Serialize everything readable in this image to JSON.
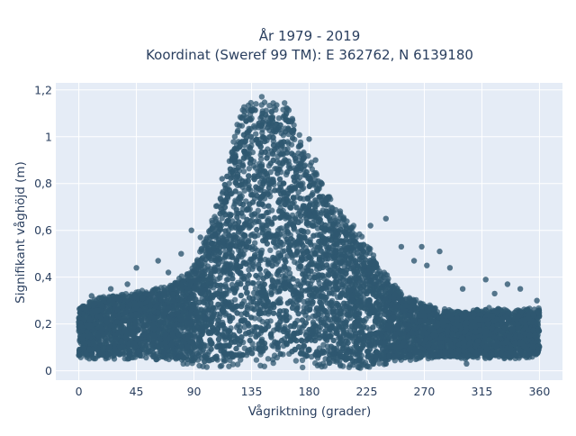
{
  "chart_data": {
    "type": "scatter",
    "title_line1": "År 1979 - 2019",
    "title_line2": "Koordinat (Sweref 99 TM): E 362762, N 6139180",
    "xlabel": "Vågriktning (grader)",
    "ylabel": "Signifikant våghöjd (m)",
    "xlim": [
      -18,
      378
    ],
    "ylim": [
      -0.04,
      1.23
    ],
    "x_ticks": [
      0,
      45,
      90,
      135,
      180,
      225,
      270,
      315,
      360
    ],
    "x_tick_labels": [
      "0",
      "45",
      "90",
      "135",
      "180",
      "225",
      "270",
      "315",
      "360"
    ],
    "y_ticks": [
      0,
      0.2,
      0.4,
      0.6,
      0.8,
      1.0,
      1.2
    ],
    "y_tick_labels": [
      "0",
      "0,2",
      "0,4",
      "0,6",
      "0,8",
      "1",
      "1,2"
    ],
    "grid": true,
    "marker_color": "#2f5870",
    "background_color": "#e5ecf6",
    "envelope": {
      "x": [
        0,
        20,
        45,
        70,
        90,
        100,
        110,
        118,
        125,
        130,
        135,
        145,
        160,
        168,
        175,
        185,
        195,
        205,
        215,
        225,
        235,
        245,
        255,
        265,
        280,
        300,
        320,
        340,
        360
      ],
      "y_max": [
        0.28,
        0.32,
        0.34,
        0.36,
        0.45,
        0.58,
        0.75,
        0.92,
        1.08,
        1.16,
        1.18,
        1.17,
        1.15,
        1.12,
        0.98,
        0.85,
        0.75,
        0.68,
        0.62,
        0.55,
        0.45,
        0.38,
        0.32,
        0.3,
        0.27,
        0.25,
        0.27,
        0.26,
        0.27
      ],
      "y_min": [
        0.05,
        0.05,
        0.05,
        0.04,
        0.02,
        0.01,
        0.01,
        0.01,
        0.01,
        0.01,
        0.01,
        0.01,
        0.01,
        0.01,
        0.01,
        0.01,
        0.01,
        0.01,
        0.01,
        0.01,
        0.02,
        0.03,
        0.04,
        0.05,
        0.05,
        0.05,
        0.05,
        0.05,
        0.06
      ]
    },
    "outliers": [
      {
        "x": 10,
        "y": 0.32
      },
      {
        "x": 25,
        "y": 0.35
      },
      {
        "x": 38,
        "y": 0.37
      },
      {
        "x": 45,
        "y": 0.44
      },
      {
        "x": 62,
        "y": 0.47
      },
      {
        "x": 70,
        "y": 0.42
      },
      {
        "x": 80,
        "y": 0.5
      },
      {
        "x": 88,
        "y": 0.6
      },
      {
        "x": 95,
        "y": 0.57
      },
      {
        "x": 112,
        "y": 0.82
      },
      {
        "x": 180,
        "y": 0.99
      },
      {
        "x": 185,
        "y": 0.9
      },
      {
        "x": 228,
        "y": 0.62
      },
      {
        "x": 240,
        "y": 0.65
      },
      {
        "x": 252,
        "y": 0.53
      },
      {
        "x": 262,
        "y": 0.47
      },
      {
        "x": 268,
        "y": 0.53
      },
      {
        "x": 282,
        "y": 0.51
      },
      {
        "x": 290,
        "y": 0.44
      },
      {
        "x": 300,
        "y": 0.35
      },
      {
        "x": 318,
        "y": 0.39
      },
      {
        "x": 325,
        "y": 0.33
      },
      {
        "x": 335,
        "y": 0.37
      },
      {
        "x": 345,
        "y": 0.35
      },
      {
        "x": 358,
        "y": 0.3
      },
      {
        "x": 272,
        "y": 0.45
      },
      {
        "x": 57,
        "y": 0.33
      },
      {
        "x": 303,
        "y": 0.03
      }
    ]
  }
}
